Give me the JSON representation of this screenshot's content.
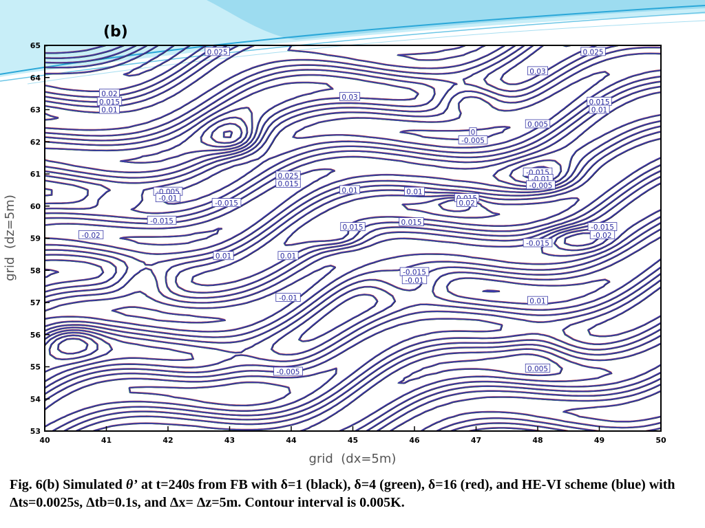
{
  "slide": {
    "colors": {
      "swoosh_light": "#c8eef8",
      "swoosh_mid": "#8fd6ee",
      "swoosh_dark": "#2aa7d8"
    }
  },
  "chart_data": {
    "type": "contour",
    "panel_label": "(b)",
    "xlabel": "grid  (dx=5m)",
    "ylabel": "grid  (dz=5m)",
    "xlim": [
      40,
      50
    ],
    "ylim": [
      53,
      65
    ],
    "x_ticks": [
      "40",
      "41",
      "42",
      "43",
      "44",
      "45",
      "46",
      "47",
      "48",
      "49",
      "50"
    ],
    "y_ticks": [
      "53",
      "54",
      "55",
      "56",
      "57",
      "58",
      "59",
      "60",
      "61",
      "62",
      "63",
      "64",
      "65"
    ],
    "contour_interval": 0.005,
    "series": [
      {
        "name": "δ=1",
        "color": "#1a1a1a"
      },
      {
        "name": "δ=4",
        "color": "#2e8b3a"
      },
      {
        "name": "δ=16",
        "color": "#c0392b"
      },
      {
        "name": "HE-VI",
        "color": "#3a3aa8"
      }
    ],
    "contour_labels": [
      {
        "text": "0.025",
        "x": 42.8,
        "y": 64.8
      },
      {
        "text": "0.025",
        "x": 48.9,
        "y": 64.8
      },
      {
        "text": "0.03",
        "x": 48.0,
        "y": 64.2
      },
      {
        "text": "0.03",
        "x": 44.95,
        "y": 63.4
      },
      {
        "text": "0.02",
        "x": 41.05,
        "y": 63.5
      },
      {
        "text": "0.015",
        "x": 41.05,
        "y": 63.25
      },
      {
        "text": "0.01",
        "x": 41.05,
        "y": 63.0
      },
      {
        "text": "0.015",
        "x": 49.0,
        "y": 63.25
      },
      {
        "text": "0.01",
        "x": 49.0,
        "y": 63.0
      },
      {
        "text": "0.005",
        "x": 48.0,
        "y": 62.55
      },
      {
        "text": "0",
        "x": 46.95,
        "y": 62.3
      },
      {
        "text": "-0.005",
        "x": 46.95,
        "y": 62.05
      },
      {
        "text": "0.025",
        "x": 43.95,
        "y": 60.95
      },
      {
        "text": "0.015",
        "x": 43.95,
        "y": 60.7
      },
      {
        "text": "0.01",
        "x": 44.95,
        "y": 60.5
      },
      {
        "text": "0.01",
        "x": 46.0,
        "y": 60.45
      },
      {
        "text": "-0.005",
        "x": 42.0,
        "y": 60.45
      },
      {
        "text": "-0.01",
        "x": 42.0,
        "y": 60.25
      },
      {
        "text": "-0.015",
        "x": 42.95,
        "y": 60.1
      },
      {
        "text": "-0.015",
        "x": 41.9,
        "y": 59.55
      },
      {
        "text": "0.015",
        "x": 46.85,
        "y": 60.25
      },
      {
        "text": "0.02",
        "x": 46.85,
        "y": 60.1
      },
      {
        "text": "0.015",
        "x": 45.0,
        "y": 59.35
      },
      {
        "text": "0.015",
        "x": 45.95,
        "y": 59.5
      },
      {
        "text": "-0.02",
        "x": 40.75,
        "y": 59.1
      },
      {
        "text": "-0.015",
        "x": 48.0,
        "y": 61.05
      },
      {
        "text": "-0.01",
        "x": 48.05,
        "y": 60.85
      },
      {
        "text": "-0.005",
        "x": 48.05,
        "y": 60.65
      },
      {
        "text": "-0.015",
        "x": 49.05,
        "y": 59.35
      },
      {
        "text": "-0.02",
        "x": 49.05,
        "y": 59.1
      },
      {
        "text": "-0.015",
        "x": 48.0,
        "y": 58.85
      },
      {
        "text": "0.01",
        "x": 42.9,
        "y": 58.45
      },
      {
        "text": "0.01",
        "x": 43.95,
        "y": 58.45
      },
      {
        "text": "-0.015",
        "x": 46.0,
        "y": 57.95
      },
      {
        "text": "-0.01",
        "x": 46.0,
        "y": 57.7
      },
      {
        "text": "-0.01",
        "x": 43.95,
        "y": 57.15
      },
      {
        "text": "0.01",
        "x": 48.0,
        "y": 57.05
      },
      {
        "text": "-0.005",
        "x": 43.95,
        "y": 54.85
      },
      {
        "text": "0.005",
        "x": 48.0,
        "y": 54.95
      }
    ]
  },
  "caption": {
    "prefix": "Fig. 6(b) Simulated ",
    "symbol": "θ’",
    "text": " at t=240s from FB with δ=1 (black), δ=4 (green),  δ=16 (red),  and HE-VI scheme (blue) with Δts=0.0025s, Δtb=0.1s, and Δx= Δz=5m. Contour interval is 0.005K."
  }
}
